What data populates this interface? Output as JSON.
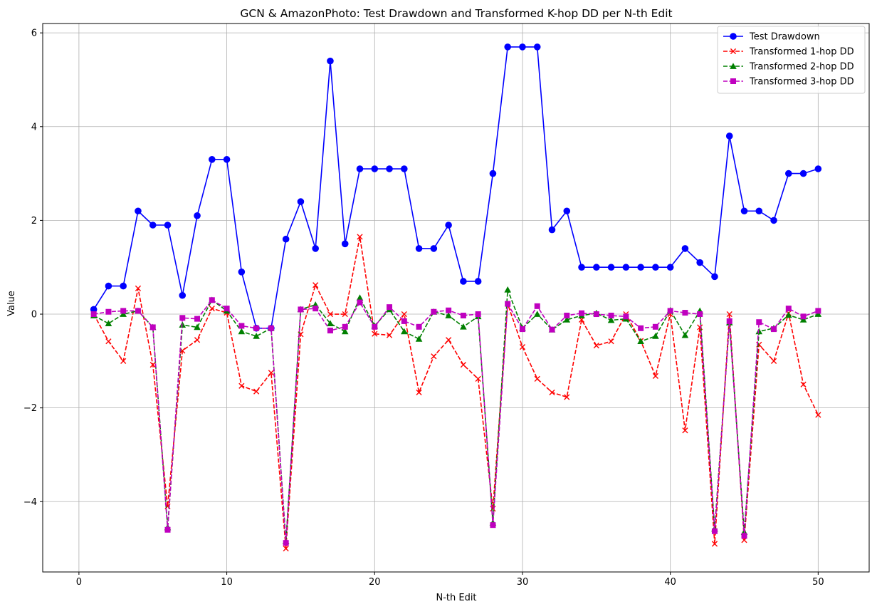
{
  "chart_data": {
    "type": "line",
    "title": "GCN & AmazonPhoto: Test Drawdown and Transformed K-hop DD per N-th Edit",
    "xlabel": "N-th Edit",
    "ylabel": "Value",
    "xlim": [
      -2.45,
      53.45
    ],
    "ylim": [
      -5.5,
      6.2
    ],
    "xticks": [
      0,
      10,
      20,
      30,
      40,
      50
    ],
    "yticks": [
      -4,
      -2,
      0,
      2,
      4,
      6
    ],
    "ytick_labels": [
      "−4",
      "−2",
      "0",
      "2",
      "4",
      "6"
    ],
    "grid": true,
    "legend_position": "top-right",
    "x": [
      1,
      2,
      3,
      4,
      5,
      6,
      7,
      8,
      9,
      10,
      11,
      12,
      13,
      14,
      15,
      16,
      17,
      18,
      19,
      20,
      21,
      22,
      23,
      24,
      25,
      26,
      27,
      28,
      29,
      30,
      31,
      32,
      33,
      34,
      35,
      36,
      37,
      38,
      39,
      40,
      41,
      42,
      43,
      44,
      45,
      46,
      47,
      48,
      49,
      50
    ],
    "series": [
      {
        "name": "Test Drawdown",
        "color": "#0000ff",
        "linestyle": "solid",
        "marker": "circle",
        "values": [
          0.1,
          0.6,
          0.6,
          2.2,
          1.9,
          1.9,
          0.4,
          2.1,
          3.3,
          3.3,
          0.9,
          -0.3,
          -0.3,
          1.6,
          2.4,
          1.4,
          5.4,
          1.5,
          3.1,
          3.1,
          3.1,
          3.1,
          1.4,
          1.4,
          1.9,
          0.7,
          0.7,
          3.0,
          5.7,
          5.7,
          5.7,
          1.8,
          2.2,
          1.0,
          1.0,
          1.0,
          1.0,
          1.0,
          1.0,
          1.0,
          1.4,
          1.1,
          0.8,
          3.8,
          2.2,
          2.2,
          2.0,
          3.0,
          3.0,
          3.1
        ]
      },
      {
        "name": "Transformed 1-hop DD",
        "color": "#ff0000",
        "linestyle": "dashed",
        "marker": "x",
        "values": [
          0.0,
          -0.58,
          -1.0,
          0.55,
          -1.08,
          -4.1,
          -0.78,
          -0.55,
          0.12,
          0.03,
          -1.53,
          -1.65,
          -1.25,
          -5.0,
          -0.43,
          0.62,
          0.0,
          0.0,
          1.65,
          -0.42,
          -0.45,
          0.0,
          -1.67,
          -0.9,
          -0.55,
          -1.08,
          -1.38,
          -4.15,
          0.22,
          -0.7,
          -1.38,
          -1.67,
          -1.77,
          -0.12,
          -0.67,
          -0.58,
          0.0,
          -0.57,
          -1.32,
          0.0,
          -2.48,
          -0.28,
          -4.9,
          0.0,
          -4.82,
          -0.65,
          -1.0,
          0.02,
          -1.5,
          -2.15
        ]
      },
      {
        "name": "Transformed 2-hop DD",
        "color": "#008000",
        "linestyle": "dashed",
        "marker": "triangle",
        "values": [
          -0.03,
          -0.2,
          0.0,
          0.07,
          -0.28,
          -4.55,
          -0.23,
          -0.28,
          0.3,
          0.07,
          -0.37,
          -0.47,
          -0.3,
          -4.85,
          0.1,
          0.2,
          -0.2,
          -0.37,
          0.35,
          -0.25,
          0.1,
          -0.37,
          -0.53,
          0.05,
          -0.03,
          -0.27,
          -0.05,
          -4.45,
          0.52,
          -0.3,
          0.0,
          -0.33,
          -0.12,
          -0.03,
          0.02,
          -0.13,
          -0.1,
          -0.58,
          -0.47,
          0.08,
          -0.45,
          0.07,
          -4.58,
          -0.18,
          -4.65,
          -0.37,
          -0.3,
          -0.02,
          -0.12,
          0.0
        ]
      },
      {
        "name": "Transformed 3-hop DD",
        "color": "#bf00bf",
        "linestyle": "dashed",
        "marker": "square",
        "values": [
          0.0,
          0.05,
          0.07,
          0.07,
          -0.28,
          -4.6,
          -0.08,
          -0.1,
          0.3,
          0.12,
          -0.25,
          -0.3,
          -0.3,
          -4.88,
          0.1,
          0.12,
          -0.35,
          -0.27,
          0.25,
          -0.27,
          0.15,
          -0.15,
          -0.27,
          0.05,
          0.08,
          -0.03,
          0.0,
          -4.5,
          0.22,
          -0.32,
          0.17,
          -0.33,
          -0.03,
          0.02,
          0.0,
          -0.03,
          -0.05,
          -0.3,
          -0.27,
          0.07,
          0.03,
          0.0,
          -4.63,
          -0.15,
          -4.73,
          -0.17,
          -0.32,
          0.12,
          -0.05,
          0.07
        ]
      }
    ]
  }
}
